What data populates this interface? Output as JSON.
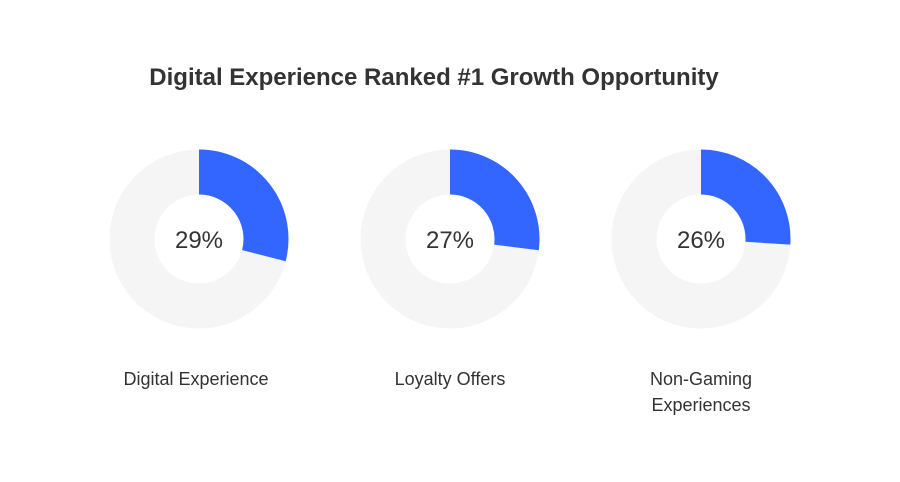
{
  "chart_data": {
    "type": "pie",
    "variant": "donut",
    "title": "Digital Experience Ranked #1 Growth Opportunity",
    "unit": "%",
    "charts": [
      {
        "label": "Digital Experience",
        "value": 29
      },
      {
        "label": "Loyalty Offers",
        "value": 27
      },
      {
        "label": "Non-Gaming Experiences",
        "value": 26
      }
    ],
    "colors": {
      "filled": "#3366ff",
      "remainder": "#f5f5f5"
    }
  }
}
